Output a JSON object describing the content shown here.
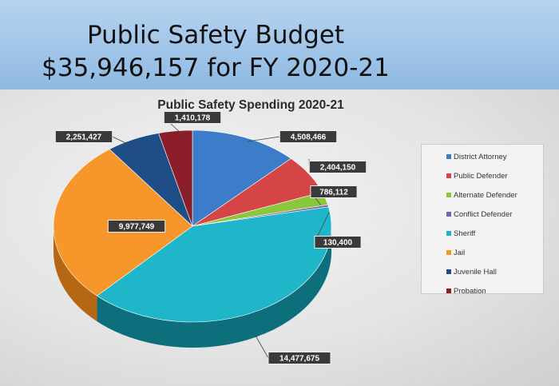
{
  "slide": {
    "title_line1": "Public Safety Budget",
    "title_line2": "$35,946,157 for FY 2020-21"
  },
  "chart_data": {
    "type": "pie",
    "title": "Public Safety Spending 2020-21",
    "legend_position": "right",
    "slices": [
      {
        "name": "District Attorney",
        "value": 4508466,
        "label": "4,508,466",
        "color": "#3d7cc9",
        "dark": "#25528a"
      },
      {
        "name": "Public Defender",
        "value": 2404150,
        "label": "2,404,150",
        "color": "#d64545",
        "dark": "#8e2a2a"
      },
      {
        "name": "Alternate Defender",
        "value": 786112,
        "label": "786,112",
        "color": "#8cc63e",
        "dark": "#5b8624"
      },
      {
        "name": "Conflict Defender",
        "value": 130400,
        "label": "130,400",
        "color": "#7b5fb0",
        "dark": "#503c76"
      },
      {
        "name": "Sheriff",
        "value": 14477675,
        "label": "14,477,675",
        "color": "#1fb6c9",
        "dark": "#0d6f7c"
      },
      {
        "name": "Jail",
        "value": 9977749,
        "label": "9,977,749",
        "color": "#f7962b",
        "dark": "#b56713"
      },
      {
        "name": "Juvenile Hall",
        "value": 2251427,
        "label": "2,251,427",
        "color": "#1f4e86",
        "dark": "#122f52"
      },
      {
        "name": "Probation",
        "value": 1410178,
        "label": "1,410,178",
        "color": "#8c1d2a",
        "dark": "#561018"
      }
    ]
  }
}
